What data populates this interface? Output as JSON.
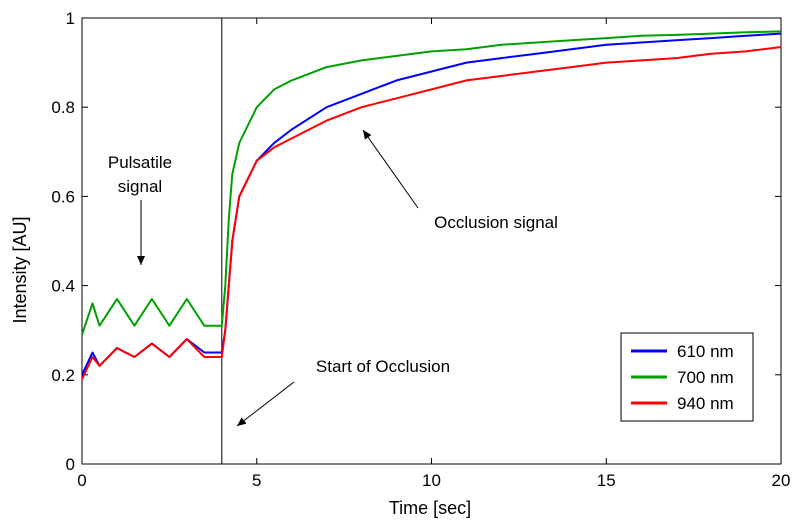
{
  "chart_data": {
    "type": "line",
    "xlabel": "Time [sec]",
    "ylabel": "Intensity [AU]",
    "xlim": [
      0,
      20
    ],
    "ylim": [
      0,
      1
    ],
    "xticks": [
      "0",
      "5",
      "10",
      "15",
      "20"
    ],
    "yticks": [
      "0",
      "0.2",
      "0.4",
      "0.6",
      "0.8",
      "1"
    ],
    "grid": false,
    "legend_position": "bottom-right",
    "series": [
      {
        "name": "610 nm",
        "color": "#0000ff",
        "x": [
          0,
          0.3,
          0.5,
          1,
          1.5,
          2,
          2.5,
          3,
          3.5,
          4,
          4.1,
          4.2,
          4.3,
          4.5,
          5,
          5.5,
          6,
          7,
          8,
          9,
          10,
          11,
          12,
          13,
          14,
          15,
          16,
          17,
          18,
          19,
          20
        ],
        "y": [
          0.2,
          0.25,
          0.22,
          0.26,
          0.24,
          0.27,
          0.24,
          0.28,
          0.25,
          0.25,
          0.3,
          0.4,
          0.5,
          0.6,
          0.68,
          0.72,
          0.75,
          0.8,
          0.83,
          0.86,
          0.88,
          0.9,
          0.91,
          0.92,
          0.93,
          0.94,
          0.945,
          0.95,
          0.955,
          0.96,
          0.965
        ]
      },
      {
        "name": "700 nm",
        "color": "#00a000",
        "x": [
          0,
          0.3,
          0.5,
          1,
          1.5,
          2,
          2.5,
          3,
          3.5,
          4,
          4.1,
          4.2,
          4.3,
          4.5,
          5,
          5.5,
          6,
          7,
          8,
          9,
          10,
          11,
          12,
          13,
          14,
          15,
          16,
          17,
          18,
          19,
          20
        ],
        "y": [
          0.29,
          0.36,
          0.31,
          0.37,
          0.31,
          0.37,
          0.31,
          0.37,
          0.31,
          0.31,
          0.4,
          0.55,
          0.65,
          0.72,
          0.8,
          0.84,
          0.86,
          0.89,
          0.905,
          0.915,
          0.925,
          0.93,
          0.94,
          0.945,
          0.95,
          0.955,
          0.96,
          0.962,
          0.965,
          0.968,
          0.97
        ]
      },
      {
        "name": "940 nm",
        "color": "#ff0000",
        "x": [
          0,
          0.3,
          0.5,
          1,
          1.5,
          2,
          2.5,
          3,
          3.5,
          4,
          4.1,
          4.2,
          4.3,
          4.5,
          5,
          5.5,
          6,
          7,
          8,
          9,
          10,
          11,
          12,
          13,
          14,
          15,
          16,
          17,
          18,
          19,
          20
        ],
        "y": [
          0.19,
          0.24,
          0.22,
          0.26,
          0.24,
          0.27,
          0.24,
          0.28,
          0.24,
          0.24,
          0.3,
          0.4,
          0.5,
          0.6,
          0.68,
          0.71,
          0.73,
          0.77,
          0.8,
          0.82,
          0.84,
          0.86,
          0.87,
          0.88,
          0.89,
          0.9,
          0.905,
          0.91,
          0.92,
          0.925,
          0.935
        ]
      }
    ],
    "vline_x": 4,
    "annotations": [
      {
        "id": "pulsatile",
        "lines": [
          "Pulsatile",
          "signal"
        ],
        "data_x": 2,
        "data_y": 0.32
      },
      {
        "id": "occlusion",
        "lines": [
          "Occlusion signal"
        ],
        "data_x": 8,
        "data_y": 0.75
      },
      {
        "id": "start",
        "lines": [
          "Start of Occlusion"
        ],
        "data_x": 4.5,
        "data_y": 0.1
      }
    ]
  }
}
